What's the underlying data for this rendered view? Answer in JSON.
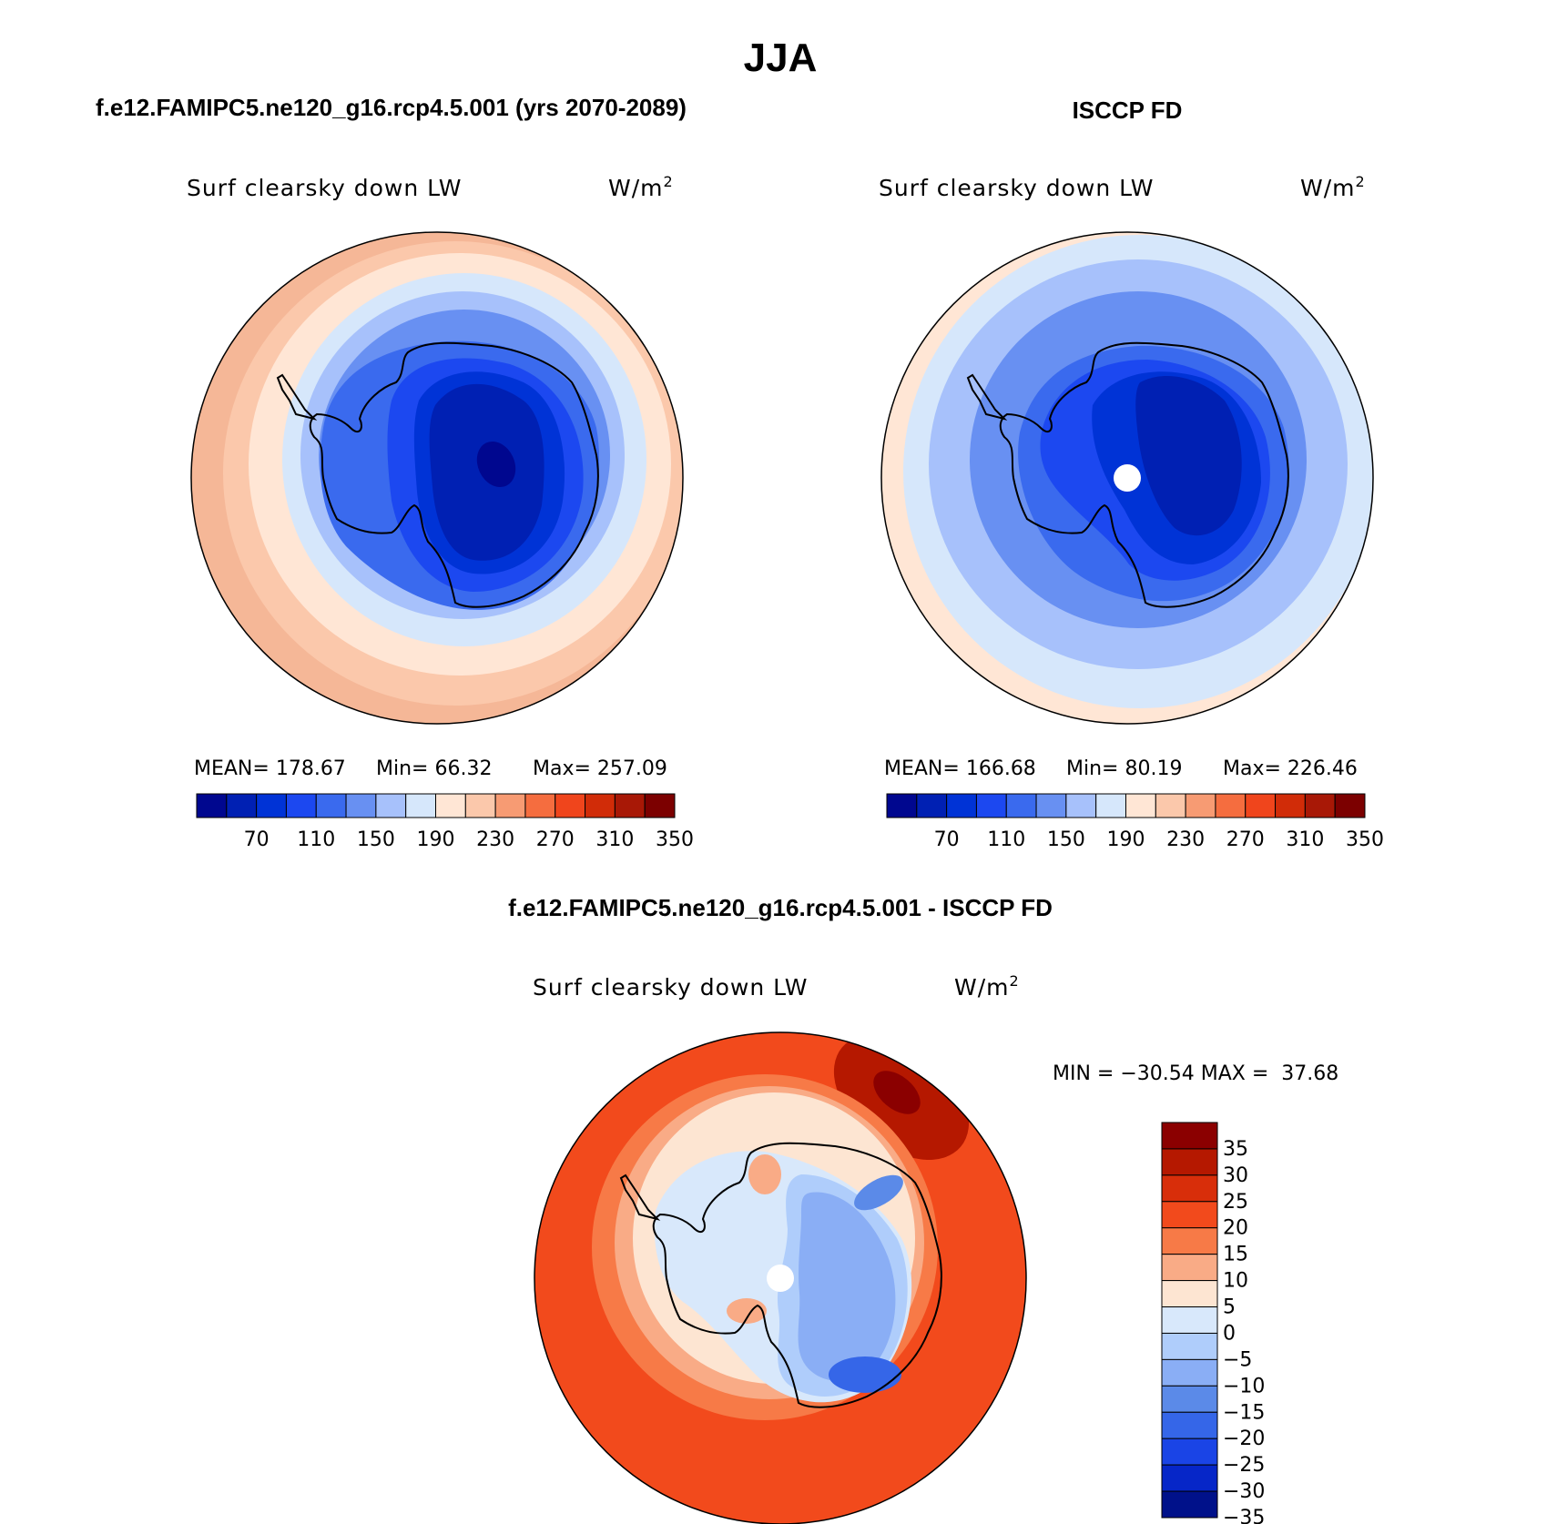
{
  "figure": {
    "title": "JJA"
  },
  "chart_data": [
    {
      "type": "polar-contour-map",
      "title": "f.e12.FAMIPC5.ne120_g16.rcp4.5.001 (yrs 2070-2089)",
      "variable": "Surf clearsky down LW",
      "units_base": "W/m",
      "units_exp": "2",
      "stats": {
        "mean_label": "MEAN=",
        "mean": "178.67",
        "min_label": "Min=",
        "min": "66.32",
        "max_label": "Max=",
        "max": "257.09"
      },
      "levels": [
        70,
        90,
        110,
        130,
        150,
        170,
        190,
        210,
        230,
        250,
        270,
        290,
        310,
        330,
        350
      ],
      "colorbar_ticks": [
        "70",
        "110",
        "150",
        "190",
        "230",
        "270",
        "310",
        "350"
      ],
      "colorbar_orientation": "horizontal",
      "palette": [
        "#00078f",
        "#0020b3",
        "#0033d6",
        "#1c48f0",
        "#3a6aee",
        "#6890f2",
        "#a7c1fb",
        "#d6e7fb",
        "#ffe6d5",
        "#fbc8ab",
        "#f79b73",
        "#f56d3f",
        "#f0451c",
        "#d12c08",
        "#a81806",
        "#7c0000"
      ]
    },
    {
      "type": "polar-contour-map",
      "title": "ISCCP FD",
      "variable": "Surf clearsky down LW",
      "units_base": "W/m",
      "units_exp": "2",
      "stats": {
        "mean_label": "MEAN=",
        "mean": "166.68",
        "min_label": "Min=",
        "min": "80.19",
        "max_label": "Max=",
        "max": "226.46"
      },
      "levels": [
        70,
        90,
        110,
        130,
        150,
        170,
        190,
        210,
        230,
        250,
        270,
        290,
        310,
        330,
        350
      ],
      "colorbar_ticks": [
        "70",
        "110",
        "150",
        "190",
        "230",
        "270",
        "310",
        "350"
      ],
      "colorbar_orientation": "horizontal",
      "palette": [
        "#00078f",
        "#0020b3",
        "#0033d6",
        "#1c48f0",
        "#3a6aee",
        "#6890f2",
        "#a7c1fb",
        "#d6e7fb",
        "#ffe6d5",
        "#fbc8ab",
        "#f79b73",
        "#f56d3f",
        "#f0451c",
        "#d12c08",
        "#a81806",
        "#7c0000"
      ]
    },
    {
      "type": "polar-contour-map",
      "title": "f.e12.FAMIPC5.ne120_g16.rcp4.5.001 - ISCCP FD",
      "variable": "Surf clearsky down LW",
      "units_base": "W/m",
      "units_exp": "2",
      "stats": {
        "text": "MIN = −30.54 MAX =  37.68"
      },
      "levels": [
        -35,
        -30,
        -25,
        -20,
        -15,
        -10,
        -5,
        0,
        5,
        10,
        15,
        20,
        25,
        30,
        35
      ],
      "colorbar_ticks": [
        "35",
        "30",
        "25",
        "20",
        "15",
        "10",
        "5",
        "0",
        "−5",
        "−10",
        "−15",
        "−20",
        "−25",
        "−30",
        "−35"
      ],
      "colorbar_orientation": "vertical",
      "palette": [
        "#8b0000",
        "#b51800",
        "#d82e0a",
        "#f24a1c",
        "#f77a47",
        "#f9ab86",
        "#fde5d2",
        "#d8e8fb",
        "#afcdfb",
        "#8aaef5",
        "#5b8ae8",
        "#3566e8",
        "#1a44e6",
        "#0626c8",
        "#00118a"
      ]
    }
  ]
}
